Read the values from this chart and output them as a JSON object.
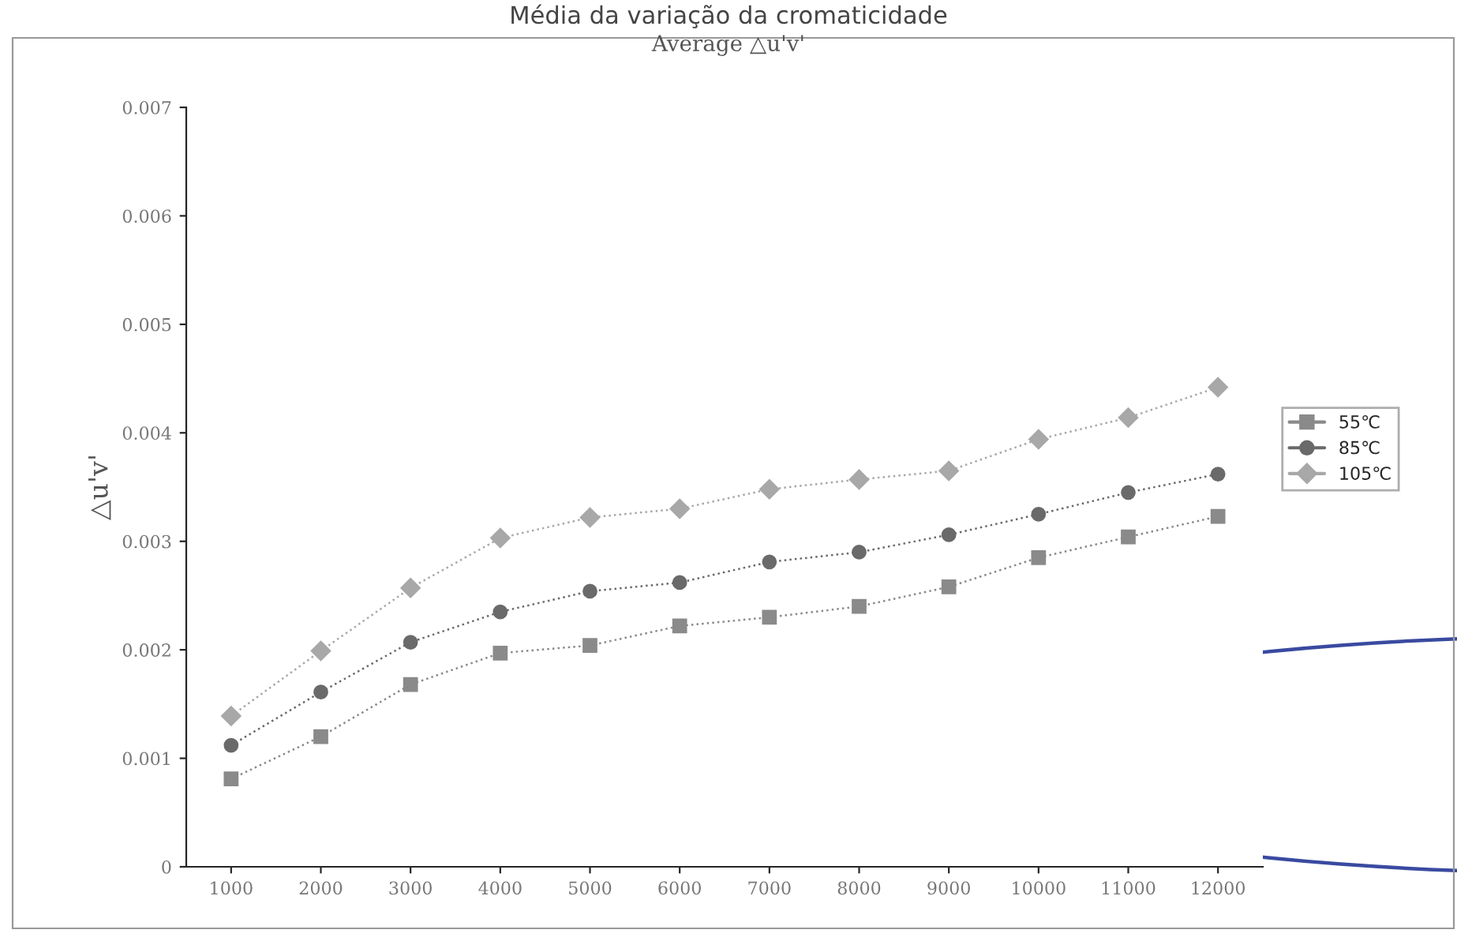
{
  "chart_data": {
    "type": "line",
    "title": "Média da variação da cromaticidade",
    "subtitle": "Average △u'v'",
    "ylabel": "△u'v'",
    "categories": [
      "1000",
      "2000",
      "3000",
      "4000",
      "5000",
      "6000",
      "7000",
      "8000",
      "9000",
      "10000",
      "11000",
      "12000"
    ],
    "series": [
      {
        "name": "55℃",
        "color": "#8a8a8a",
        "marker": "square",
        "values": [
          0.00081,
          0.0012,
          0.00168,
          0.00197,
          0.00204,
          0.00222,
          0.0023,
          0.0024,
          0.00258,
          0.00285,
          0.00304,
          0.00323
        ]
      },
      {
        "name": "85℃",
        "color": "#6a6a6a",
        "marker": "circle",
        "values": [
          0.00112,
          0.00161,
          0.00207,
          0.00235,
          0.00254,
          0.00262,
          0.00281,
          0.0029,
          0.00306,
          0.00325,
          0.00345,
          0.00362
        ]
      },
      {
        "name": "105℃",
        "color": "#a8a8a8",
        "marker": "diamond",
        "values": [
          0.00139,
          0.00199,
          0.00257,
          0.00303,
          0.00322,
          0.0033,
          0.00348,
          0.00357,
          0.00365,
          0.00394,
          0.00414,
          0.00442
        ]
      }
    ],
    "line_style": "dotted",
    "ylim": [
      0,
      0.007
    ],
    "yticks": [
      0,
      0.001,
      0.002,
      0.003,
      0.004,
      0.005,
      0.006,
      0.007
    ],
    "grid": false,
    "legend": "right"
  }
}
